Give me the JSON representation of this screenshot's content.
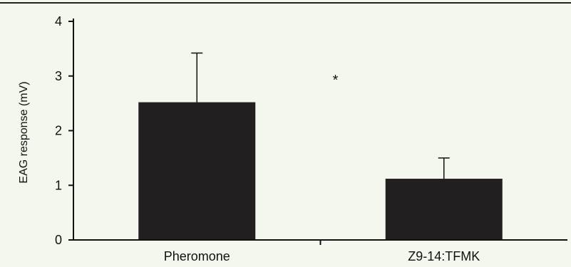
{
  "chart_data": {
    "type": "bar",
    "categories": [
      "Pheromone",
      "Z9-14:TFMK"
    ],
    "values": [
      2.52,
      1.12
    ],
    "error_bars_upper": [
      3.42,
      1.5
    ],
    "ylabel": "EAG response (mV)",
    "xlabel": "",
    "ylim": [
      0,
      4
    ],
    "yticks": [
      0,
      1,
      2,
      3,
      4
    ],
    "grid": false,
    "annotation": "*",
    "annotation_between": [
      "Pheromone",
      "Z9-14:TFMK"
    ],
    "colors": {
      "bar": "#231f20",
      "axis": "#111111",
      "background": "#f3f7ee"
    }
  }
}
